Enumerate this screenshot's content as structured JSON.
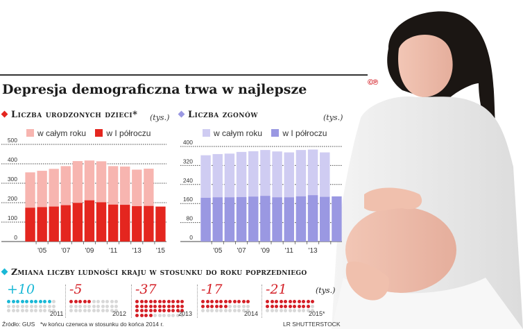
{
  "header": {
    "title": "Depresja demograficzna trwa w najlepsze",
    "brand": "©℗"
  },
  "colors": {
    "red_full": "#f7b5b0",
    "red_half": "#e4261f",
    "purple_full": "#cfccf2",
    "purple_half": "#9a98e2",
    "cyan": "#19b8d6",
    "red": "#d41f26",
    "gray_dot": "#d8d8d8"
  },
  "chart_data": [
    {
      "type": "bar",
      "title": "Liczba urodzonych dzieci*",
      "unit": "(tys.)",
      "legend": [
        "w całym roku",
        "w I półroczu"
      ],
      "categories": [
        "2004",
        "2005",
        "2006",
        "2007",
        "2008",
        "2009",
        "2010",
        "2011",
        "2012",
        "2013",
        "2014",
        "2015"
      ],
      "tick_labels": [
        "'05",
        "'07",
        "'09",
        "'11",
        "'13",
        "'15"
      ],
      "tick_categories": [
        "2005",
        "2007",
        "2009",
        "2011",
        "2013",
        "2015"
      ],
      "series": [
        {
          "name": "w całym roku",
          "values": [
            356,
            364,
            374,
            388,
            414,
            417,
            413,
            388,
            386,
            370,
            375,
            null
          ]
        },
        {
          "name": "w I półroczu",
          "values": [
            174,
            177,
            180,
            187,
            199,
            212,
            202,
            190,
            189,
            182,
            183,
            180
          ]
        }
      ],
      "ylim": [
        0,
        500
      ],
      "yticks": [
        0,
        100,
        200,
        300,
        400,
        500
      ],
      "grid": true
    },
    {
      "type": "bar",
      "title": "Liczba zgonów",
      "unit": "(tys.)",
      "legend": [
        "w całym roku",
        "w I półroczu"
      ],
      "categories": [
        "2004",
        "2005",
        "2006",
        "2007",
        "2008",
        "2009",
        "2010",
        "2011",
        "2012",
        "2013",
        "2014",
        "2015"
      ],
      "tick_labels": [
        "'05",
        "'07",
        "'09",
        "'11",
        "'13"
      ],
      "tick_categories": [
        "2005",
        "2007",
        "2009",
        "2011",
        "2013"
      ],
      "series": [
        {
          "name": "w całym roku",
          "values": [
            363,
            368,
            370,
            377,
            380,
            385,
            379,
            375,
            385,
            387,
            375,
            null
          ]
        },
        {
          "name": "w I półroczu",
          "values": [
            184,
            186,
            186,
            187,
            189,
            192,
            186,
            186,
            190,
            195,
            188,
            190
          ]
        }
      ],
      "ylim": [
        0,
        400
      ],
      "yticks": [
        0,
        80,
        160,
        240,
        320,
        400
      ],
      "grid": true
    }
  ],
  "changes": {
    "title": "Zmiana liczby ludności kraju w stosunku do roku poprzedniego",
    "unit": "(tys.)",
    "items": [
      {
        "value": "+10",
        "year": "2011",
        "count": 10,
        "color": "#19b8d6"
      },
      {
        "value": "-5",
        "year": "2012",
        "count": 5,
        "color": "#d41f26"
      },
      {
        "value": "-37",
        "year": "2013",
        "count": 37,
        "color": "#d41f26"
      },
      {
        "value": "-17",
        "year": "2014",
        "count": 17,
        "color": "#d41f26"
      },
      {
        "value": "-21",
        "year": "2015*",
        "count": 21,
        "color": "#d41f26"
      }
    ]
  },
  "footer": {
    "source": "Źródło: GUS",
    "note": "*w końcu czerwca w stosunku do końca 2014 r.",
    "credit": "LR   SHUTTERSTOCK"
  }
}
